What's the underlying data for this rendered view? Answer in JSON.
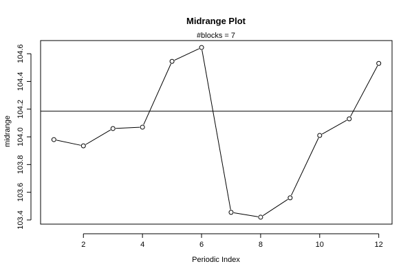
{
  "chart_data": {
    "type": "line",
    "title": "Midrange Plot",
    "subtitle": "#blocks =  7",
    "xlabel": "Periodic Index",
    "ylabel": "midrange",
    "x": [
      1,
      2,
      3,
      4,
      5,
      6,
      7,
      8,
      9,
      10,
      11,
      12
    ],
    "series": [
      {
        "values": [
          103.98,
          103.935,
          104.06,
          104.07,
          104.545,
          104.645,
          103.455,
          103.42,
          103.56,
          104.01,
          104.13,
          104.53
        ]
      }
    ],
    "reference_line": 104.185,
    "xlim": [
      0.55,
      12.45
    ],
    "ylim": [
      103.37,
      104.695
    ],
    "x_ticks": [
      2,
      4,
      6,
      8,
      10,
      12
    ],
    "x_tick_labels": [
      "2",
      "4",
      "6",
      "8",
      "10",
      "12"
    ],
    "y_ticks": [
      103.4,
      103.6,
      103.8,
      104.0,
      104.2,
      104.4,
      104.6
    ],
    "y_tick_labels": [
      "103.4",
      "103.6",
      "103.8",
      "104.0",
      "104.2",
      "104.4",
      "104.6"
    ],
    "grid": false,
    "marker": "open-circle"
  }
}
